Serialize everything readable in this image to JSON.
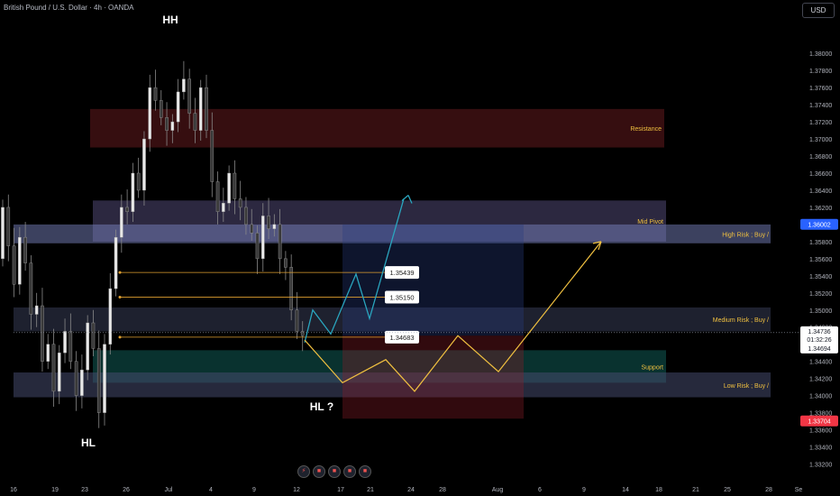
{
  "header": {
    "title": "British Pound / U.S. Dollar · 4h · OANDA",
    "currency_button": "USD"
  },
  "colors": {
    "background": "#000000",
    "up": "#e8e8e8",
    "down": "#3a3a3a",
    "cyan_path": "#2aa6bf",
    "yellow_path": "#f0c040",
    "orange_level": "#e0a030",
    "blue_marker": "#2962ff",
    "red_marker": "#f23645"
  },
  "chart_data": {
    "type": "candlestick",
    "ylim": [
      1.331,
      1.3835
    ],
    "y_ticks": [
      "1.38000",
      "1.37800",
      "1.37600",
      "1.37400",
      "1.37200",
      "1.37000",
      "1.36800",
      "1.36600",
      "1.36400",
      "1.36200",
      "1.35800",
      "1.35600",
      "1.35400",
      "1.35200",
      "1.35000",
      "1.34800",
      "1.34400",
      "1.34200",
      "1.34000",
      "1.33800",
      "1.33600",
      "1.33400",
      "1.33200"
    ],
    "x_ticks": [
      "16",
      "19",
      "23",
      "26",
      "Jul",
      "4",
      "9",
      "12",
      "17",
      "21",
      "24",
      "28",
      "Aug",
      "6",
      "9",
      "14",
      "18",
      "21",
      "25",
      "28",
      "Se"
    ],
    "price_series": [
      1.356,
      1.362,
      1.3575,
      1.353,
      1.3585,
      1.3555,
      1.3495,
      1.3505,
      1.344,
      1.346,
      1.3405,
      1.345,
      1.3475,
      1.344,
      1.34,
      1.343,
      1.3485,
      1.3455,
      1.338,
      1.346,
      1.3525,
      1.3585,
      1.362,
      1.3615,
      1.366,
      1.364,
      1.37,
      1.376,
      1.3745,
      1.3725,
      1.371,
      1.372,
      1.3755,
      1.377,
      1.373,
      1.371,
      1.376,
      1.371,
      1.365,
      1.3615,
      1.3625,
      1.366,
      1.363,
      1.362,
      1.36,
      1.359,
      1.356,
      1.361,
      1.3595,
      1.36,
      1.356,
      1.355,
      1.35,
      1.3475,
      1.347
    ],
    "zones": [
      {
        "label": "Resistance",
        "top": 1.3735,
        "bottom": 1.369,
        "color": "rgba(120,30,35,0.45)"
      },
      {
        "label": "Mid Pivot",
        "top": 1.3628,
        "bottom": 1.358,
        "color": "rgba(110,100,160,0.40)"
      },
      {
        "label": "High Risk ; Buy /",
        "top": 1.36,
        "bottom": 1.3578,
        "color": "rgba(120,130,190,0.50)"
      },
      {
        "label": "Medium Risk ; Buy /",
        "top": 1.3503,
        "bottom": 1.3475,
        "color": "rgba(55,60,85,0.55)"
      },
      {
        "label": "Support",
        "top": 1.3453,
        "bottom": 1.3415,
        "color": "rgba(20,110,105,0.45)"
      },
      {
        "label": "Low Risk ; Buy /",
        "top": 1.3427,
        "bottom": 1.3398,
        "color": "rgba(70,75,110,0.55)"
      }
    ],
    "position_tool": {
      "entry": 1.347,
      "target": 1.36,
      "stop": 1.3373
    },
    "levels": [
      {
        "label": "1.35439",
        "value": 1.35439
      },
      {
        "label": "1.35150",
        "value": 1.3515
      },
      {
        "label": "1.34683",
        "value": 1.34683
      }
    ],
    "cyan_path": [
      1.3462,
      1.35,
      1.3472,
      1.3542,
      1.349,
      1.363
    ],
    "yellow_path": [
      1.3465,
      1.3415,
      1.3442,
      1.3405,
      1.347,
      1.3428,
      1.358
    ],
    "last_price": {
      "label": "1.34736",
      "value": 1.34736,
      "countdown": "01:32:26",
      "low_label": "1.34694"
    },
    "markers": [
      {
        "label": "1.36002",
        "value": 1.36002,
        "kind": "blue"
      },
      {
        "label": "1.33704",
        "value": 1.33704,
        "kind": "red"
      }
    ],
    "annotations": [
      "HH",
      "HL",
      "HL ?"
    ]
  }
}
